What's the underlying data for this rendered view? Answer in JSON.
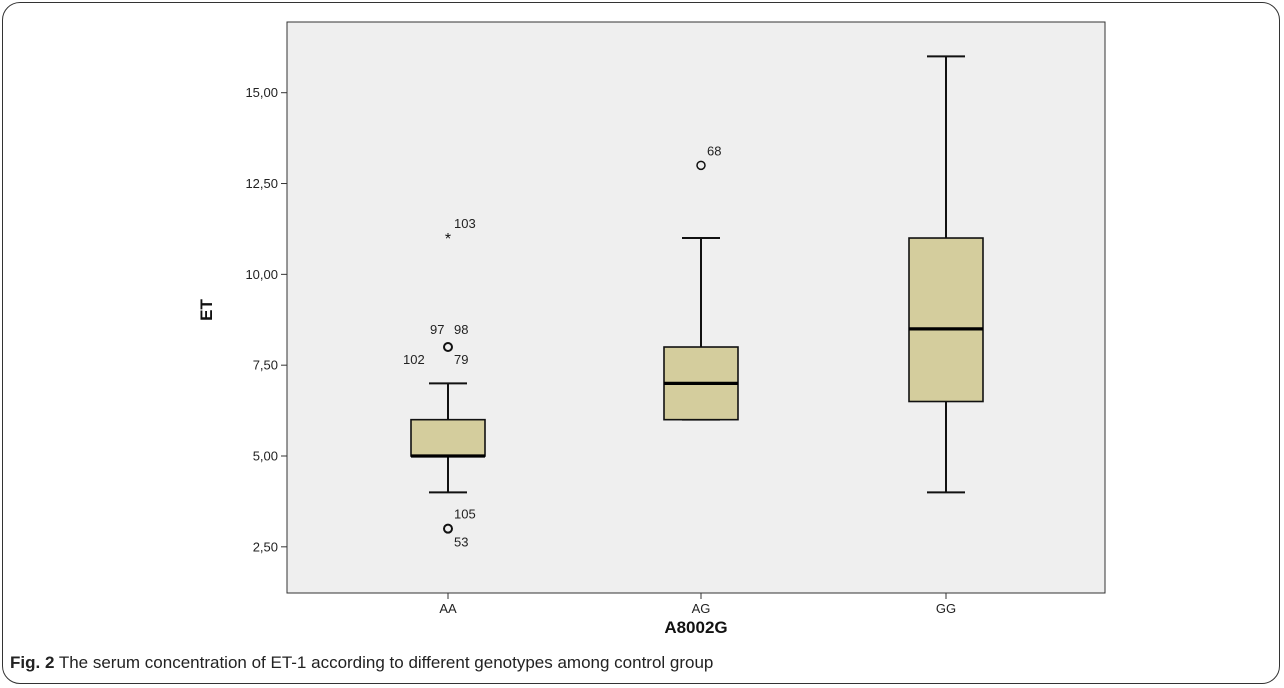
{
  "chart_data": {
    "type": "box",
    "xlabel": "A8002G",
    "ylabel": "ET",
    "ylim": [
      1.25,
      16.5
    ],
    "yticks": [
      2.5,
      5.0,
      7.5,
      10.0,
      12.5,
      15.0
    ],
    "ytick_labels": [
      "2,50",
      "5,00",
      "7,50",
      "10,00",
      "12,50",
      "15,00"
    ],
    "grid": false,
    "box_color": "#d4cd9d",
    "plot_background": "#efefef",
    "categories": [
      "AA",
      "AG",
      "GG"
    ],
    "boxes": [
      {
        "category": "AA",
        "whisker_low": 4.0,
        "q1": 5.0,
        "median": 5.0,
        "q3": 6.0,
        "whisker_high": 7.0,
        "outliers": [
          {
            "value": 8.0,
            "marker": "circle",
            "labels": [
              "97",
              "98",
              "102",
              "79"
            ]
          },
          {
            "value": 3.0,
            "marker": "circle",
            "labels": [
              "105",
              "53"
            ]
          },
          {
            "value": 11.0,
            "marker": "star",
            "labels": [
              "103"
            ]
          }
        ]
      },
      {
        "category": "AG",
        "whisker_low": 6.0,
        "q1": 6.0,
        "median": 7.0,
        "q3": 8.0,
        "whisker_high": 11.0,
        "outliers": [
          {
            "value": 13.0,
            "marker": "circle",
            "labels": [
              "68"
            ]
          }
        ]
      },
      {
        "category": "GG",
        "whisker_low": 4.0,
        "q1": 6.5,
        "median": 8.5,
        "q3": 11.0,
        "whisker_high": 16.0,
        "outliers": []
      }
    ]
  },
  "caption": {
    "label": "Fig. 2",
    "text": " The serum concentration of ET-1 according to different genotypes among control group"
  }
}
